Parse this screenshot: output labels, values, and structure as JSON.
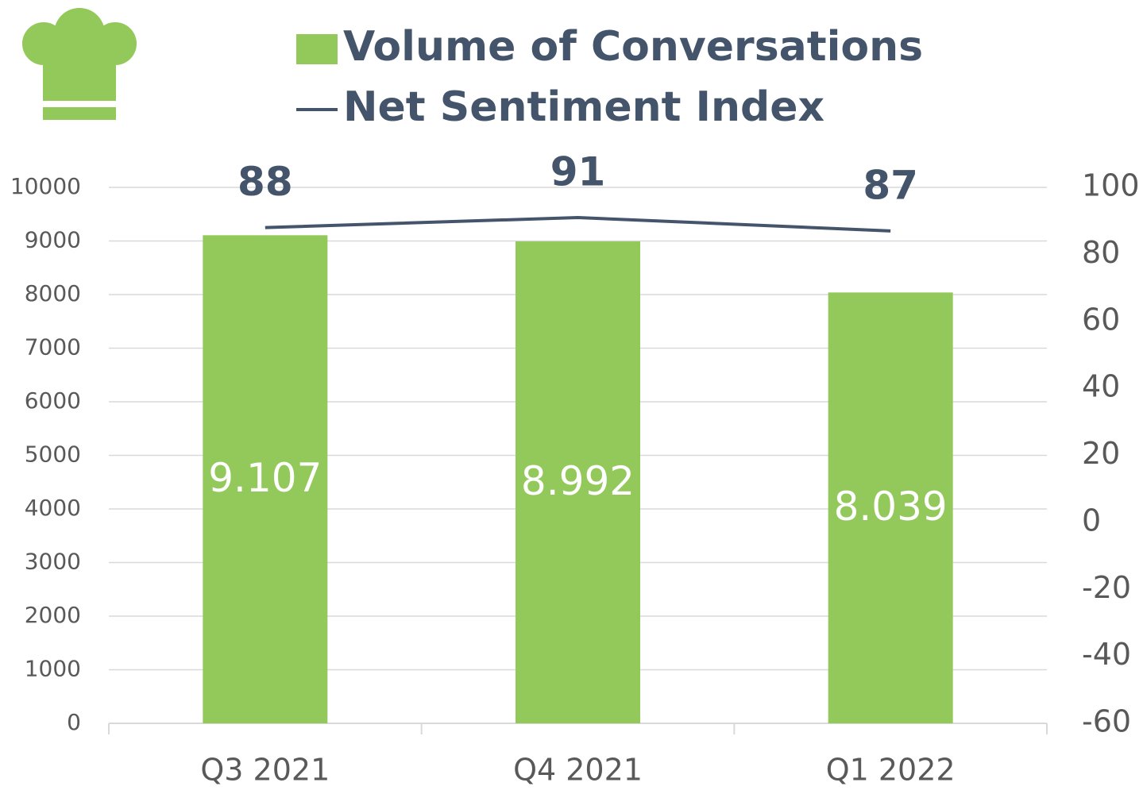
{
  "chart_data": {
    "type": "bar",
    "categories": [
      "Q3 2021",
      "Q4 2021",
      "Q1 2022"
    ],
    "series": [
      {
        "name": "Volume of Conversations",
        "type": "bar",
        "color": "#92c95a",
        "values": [
          9107,
          8992,
          8039
        ],
        "value_labels": [
          "9.107",
          "8.992",
          "8.039"
        ]
      },
      {
        "name": "Net Sentiment Index",
        "type": "line",
        "axis": "y2",
        "color": "#44546a",
        "values": [
          88,
          91,
          87
        ]
      }
    ],
    "ylim": [
      0,
      10000
    ],
    "yticks": [
      0,
      1000,
      2000,
      3000,
      4000,
      5000,
      6000,
      7000,
      8000,
      9000,
      10000
    ],
    "y2lim": [
      -60,
      100
    ],
    "y2ticks": [
      -60,
      -40,
      -20,
      0,
      20,
      40,
      60,
      80,
      100
    ],
    "grid": true,
    "legend": "top"
  }
}
